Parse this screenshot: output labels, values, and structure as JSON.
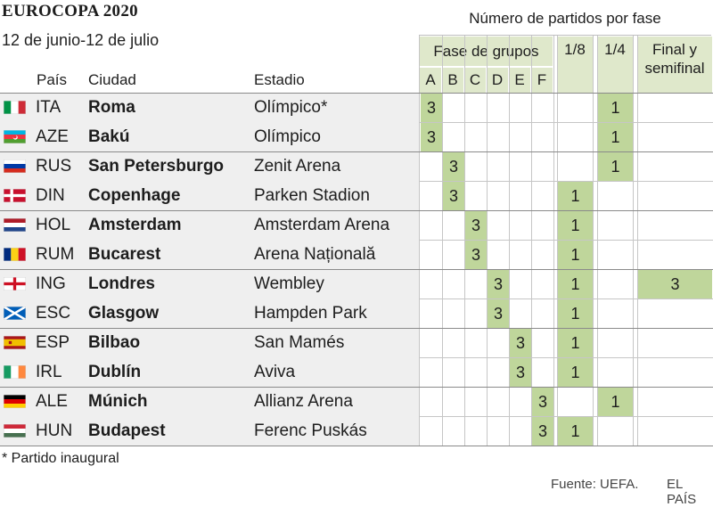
{
  "title": "EUROCOPA 2020",
  "subtitle": "12 de junio-12 de julio",
  "phase_header": "Número de partidos por fase",
  "phase_groups": {
    "groups": "Fase de grupos",
    "r16": "1/8",
    "qf": "1/4",
    "final": "Final y semifinal"
  },
  "group_letters": [
    "A",
    "B",
    "C",
    "D",
    "E",
    "F"
  ],
  "column_headers": {
    "country": "País",
    "city": "Ciudad",
    "stadium": "Estadio"
  },
  "colors": {
    "cell": "#bfd69b",
    "header_bg": "#dfe8cb",
    "band": "#efefef"
  },
  "rows": [
    {
      "flag": "italy",
      "code": "ITA",
      "city": "Roma",
      "stadium": "Olímpico*",
      "group": "A",
      "group_value": "3",
      "r16": "",
      "qf": "1",
      "final": ""
    },
    {
      "flag": "azerbaijan",
      "code": "AZE",
      "city": "Bakú",
      "stadium": "Olímpico",
      "group": "A",
      "group_value": "3",
      "r16": "",
      "qf": "1",
      "final": ""
    },
    {
      "flag": "russia",
      "code": "RUS",
      "city": "San Petersburgo",
      "stadium": "Zenit Arena",
      "group": "B",
      "group_value": "3",
      "r16": "",
      "qf": "1",
      "final": ""
    },
    {
      "flag": "denmark",
      "code": "DIN",
      "city": "Copenhage",
      "stadium": "Parken Stadion",
      "group": "B",
      "group_value": "3",
      "r16": "1",
      "qf": "",
      "final": ""
    },
    {
      "flag": "netherlands",
      "code": "HOL",
      "city": "Amsterdam",
      "stadium": "Amsterdam Arena",
      "group": "C",
      "group_value": "3",
      "r16": "1",
      "qf": "",
      "final": ""
    },
    {
      "flag": "romania",
      "code": "RUM",
      "city": "Bucarest",
      "stadium": "Arena Națională",
      "group": "C",
      "group_value": "3",
      "r16": "1",
      "qf": "",
      "final": ""
    },
    {
      "flag": "england",
      "code": "ING",
      "city": "Londres",
      "stadium": "Wembley",
      "group": "D",
      "group_value": "3",
      "r16": "1",
      "qf": "",
      "final": "3"
    },
    {
      "flag": "scotland",
      "code": "ESC",
      "city": "Glasgow",
      "stadium": "Hampden Park",
      "group": "D",
      "group_value": "3",
      "r16": "1",
      "qf": "",
      "final": ""
    },
    {
      "flag": "spain",
      "code": "ESP",
      "city": "Bilbao",
      "stadium": "San Mamés",
      "group": "E",
      "group_value": "3",
      "r16": "1",
      "qf": "",
      "final": ""
    },
    {
      "flag": "ireland",
      "code": "IRL",
      "city": "Dublín",
      "stadium": "Aviva",
      "group": "E",
      "group_value": "3",
      "r16": "1",
      "qf": "",
      "final": ""
    },
    {
      "flag": "germany",
      "code": "ALE",
      "city": "Múnich",
      "stadium": "Allianz Arena",
      "group": "F",
      "group_value": "3",
      "r16": "",
      "qf": "1",
      "final": ""
    },
    {
      "flag": "hungary",
      "code": "HUN",
      "city": "Budapest",
      "stadium": "Ferenc Puskás",
      "group": "F",
      "group_value": "3",
      "r16": "1",
      "qf": "",
      "final": ""
    }
  ],
  "footnote": "* Partido inaugural",
  "source": "Fuente: UEFA.",
  "brand": "EL PAÍS"
}
